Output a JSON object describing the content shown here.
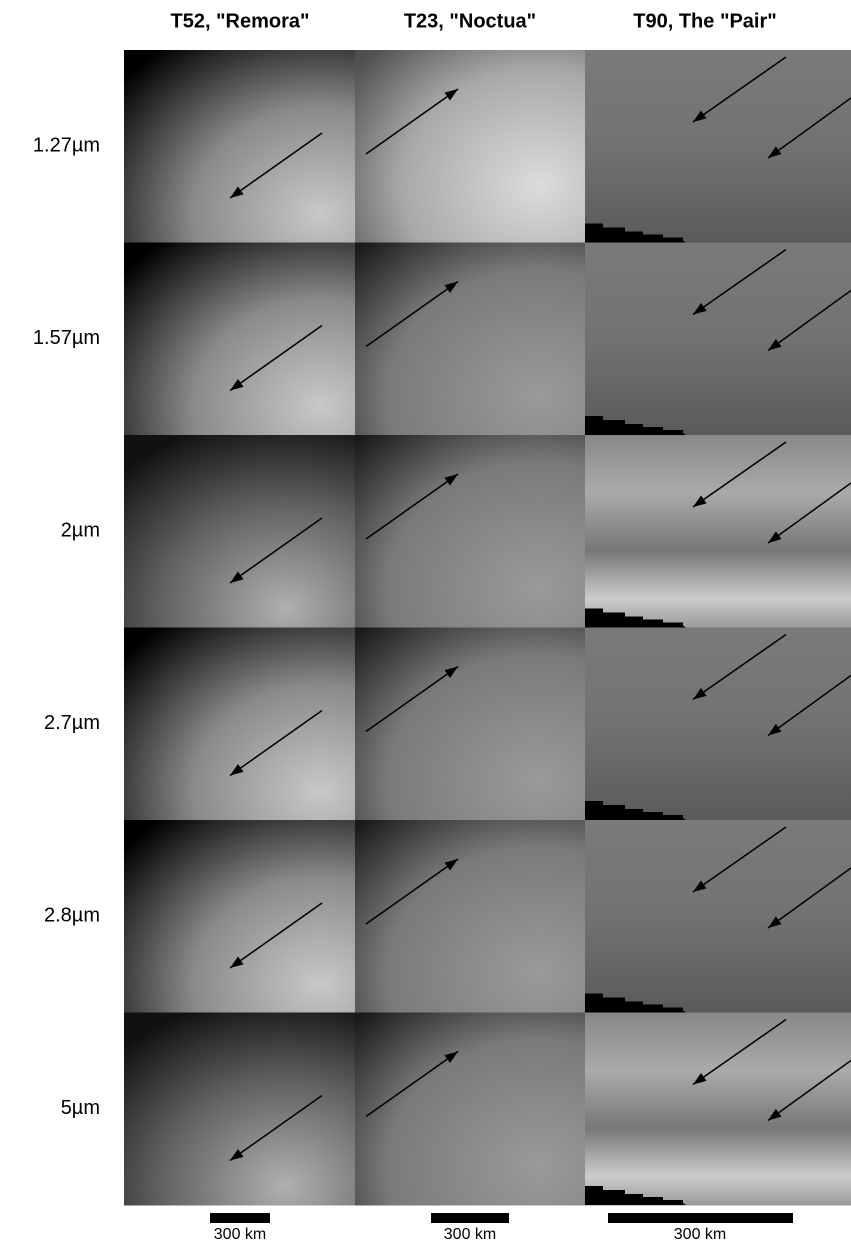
{
  "column_titles": [
    "T52, \"Remora\"",
    "T23, \"Noctua\"",
    "T90, The \"Pair\""
  ],
  "row_labels": [
    "1.27µm",
    "1.57µm",
    "2µm",
    "2.7µm",
    "2.8µm",
    "5µm"
  ],
  "scale_bars": [
    {
      "label": "300 km"
    },
    {
      "label": "300 km"
    },
    {
      "label": "300 km"
    }
  ]
}
